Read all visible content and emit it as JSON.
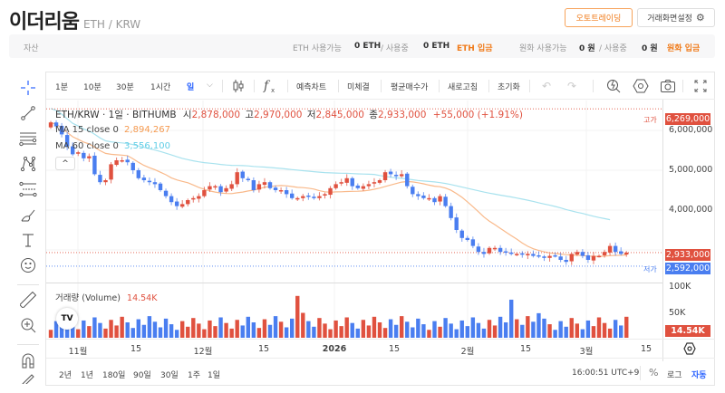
{
  "header": {
    "title": "이더리움",
    "pair": "ETH / KRW",
    "auto_trading_button": "오토트레이딩",
    "settings_button": "거래화면설정"
  },
  "assets": {
    "label": "자산",
    "eth_available_label": "ETH 사용가능",
    "eth_available_value": "0 ETH",
    "eth_in_use_label": "/ 사용중",
    "eth_in_use_value": "0 ETH",
    "eth_deposit_link": "ETH 입금",
    "krw_available_label": "원화 사용가능",
    "krw_available_value": "0 원",
    "krw_in_use_label": "/ 사용중",
    "krw_in_use_value": "0 원",
    "krw_deposit_link": "원화 입금"
  },
  "toolbar": {
    "intervals": [
      "1분",
      "10분",
      "30분",
      "1시간",
      "일"
    ],
    "selected_interval": "일",
    "buttons": [
      "예측차트",
      "미체결",
      "평균매수가",
      "새로고침",
      "초기화"
    ]
  },
  "left_tools": [
    "crosshair",
    "trend-line",
    "horizontal-lines",
    "pattern",
    "fib",
    "brush",
    "text",
    "emoji",
    "ruler",
    "zoom-in",
    "magnet",
    "pencil"
  ],
  "legend": {
    "symbol": "ETH/KRW · 1일 · BITHUMB",
    "open_label": "시",
    "open": "2,878,000",
    "high_label": "고",
    "high": "2,970,000",
    "low_label": "저",
    "low": "2,845,000",
    "close_label": "종",
    "close": "2,933,000",
    "change": "+55,000 (+1.91%)",
    "ma15_label": "MA 15 close 0",
    "ma15_value": "2,894,267",
    "ma60_label": "MA 60 close 0",
    "ma60_value": "3,556,100",
    "collapse_icon": "^"
  },
  "price_axis": {
    "labels": [
      "6,000,000",
      "5,000,000",
      "4,000,000",
      "3,000,000"
    ],
    "high_tag_label": "고가",
    "high_tag": "6,269,000",
    "current_tag": "2,933,000",
    "low_tag_label": "저가",
    "low_tag": "2,592,000"
  },
  "volume": {
    "label": "거래량 (Volume)",
    "value": "14.54K",
    "axis_labels": [
      "100K",
      "50K"
    ],
    "current_tag": "14.54K"
  },
  "time_axis": {
    "labels": [
      "11월",
      "15",
      "12월",
      "15",
      "2026",
      "15",
      "2월",
      "15",
      "3월",
      "15"
    ]
  },
  "bottom_bar": {
    "ranges": [
      "2년",
      "1년",
      "180일",
      "90일",
      "30일",
      "1주",
      "1일"
    ],
    "time": "16:00:51 UTC+9",
    "percent": "%",
    "log": "로그",
    "auto": "자동"
  },
  "colors": {
    "up": "#e0513f",
    "down": "#4a7ef0",
    "ma15": "#f9b98a",
    "ma60": "#a8e2ee",
    "accent_orange": "#f07b1a",
    "accent_blue": "#2962ff"
  },
  "chart_data": {
    "type": "candlestick",
    "title": "ETH/KRW · 1일 · BITHUMB",
    "ylim": [
      2400000,
      6400000
    ],
    "x_ticks": [
      "11월",
      "15",
      "12월",
      "15",
      "2026",
      "15",
      "2월",
      "15",
      "3월",
      "15"
    ],
    "closes_approx": [
      6200000,
      6100000,
      5900000,
      5600000,
      5400000,
      5450000,
      5300000,
      5350000,
      4900000,
      4700000,
      4750000,
      5150000,
      5250000,
      5250000,
      5200000,
      5000000,
      4800000,
      4750000,
      4700000,
      4650000,
      4500000,
      4350000,
      4200000,
      4100000,
      4150000,
      4250000,
      4300000,
      4350000,
      4500000,
      4600000,
      4600000,
      4450000,
      4550000,
      4650000,
      4950000,
      4800000,
      4750000,
      4500000,
      4650000,
      4700000,
      4550000,
      4500000,
      4500000,
      4400000,
      4300000,
      4300000,
      4350000,
      4350000,
      4300000,
      4350000,
      4400000,
      4550000,
      4650000,
      4700000,
      4800000,
      4600000,
      4550000,
      4600000,
      4650000,
      4700000,
      4750000,
      4950000,
      4900000,
      4850000,
      4900000,
      4600000,
      4400000,
      4350000,
      4300000,
      4300000,
      4200000,
      4350000,
      4100000,
      3800000,
      3500000,
      3300000,
      3250000,
      3100000,
      2950000,
      2900000,
      3050000,
      3050000,
      2950000,
      2950000,
      2900000,
      2900000,
      2880000,
      2900000,
      2850000,
      2850000,
      2800000,
      2850000,
      2850000,
      2750000,
      2700000,
      2900000,
      2950000,
      2850000,
      2750000,
      2850000,
      2850000,
      2950000,
      3100000,
      2950000,
      2900000,
      2933000
    ],
    "ma15_last": 2894267,
    "ma60_last": 3556100,
    "volume_ylim": [
      0,
      120000
    ],
    "volume_last": 14540
  }
}
